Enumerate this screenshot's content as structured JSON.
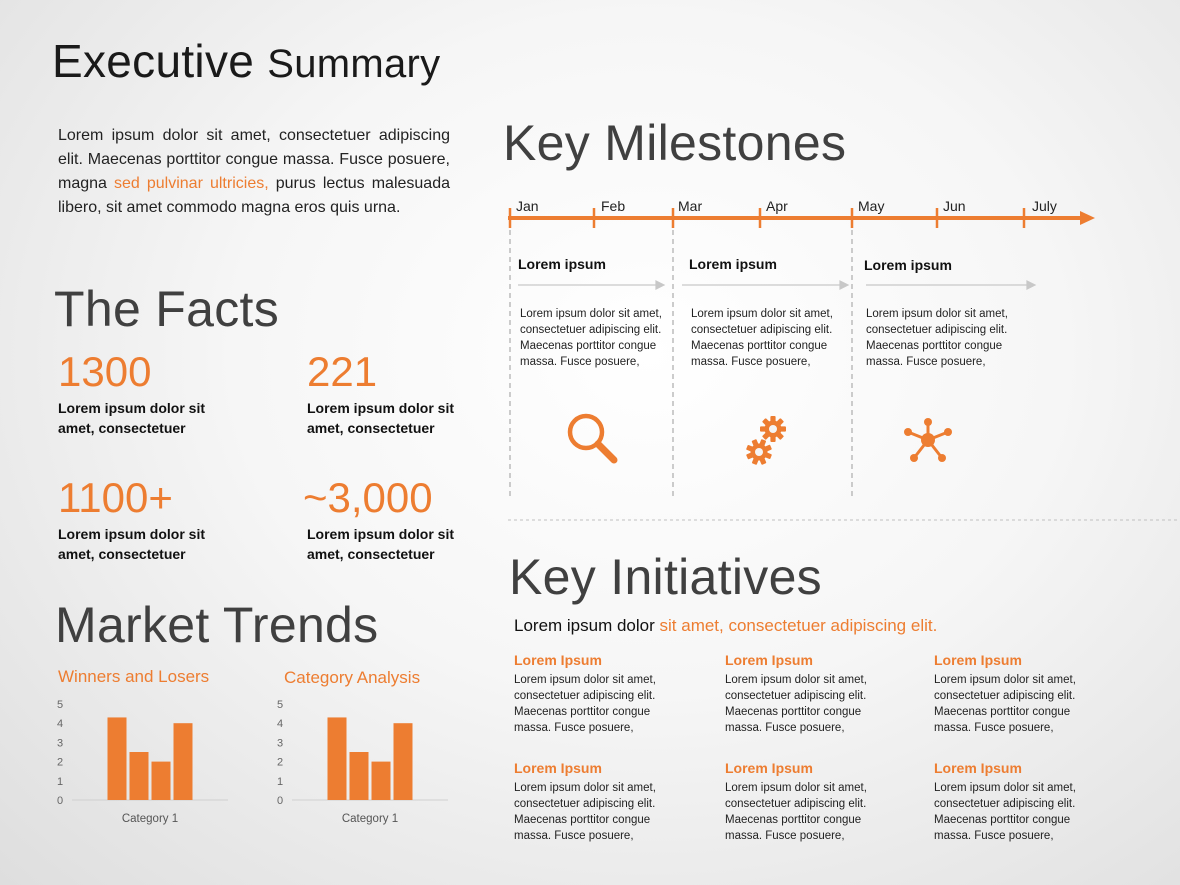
{
  "title": {
    "part1": "Executive",
    "part2": "Summary"
  },
  "intro": {
    "text_before": "Lorem ipsum dolor sit amet, consectetuer adipiscing elit. Maecenas porttitor congue massa. Fusce posuere, magna ",
    "highlight": "sed pulvinar ultricies,",
    "text_after": " purus lectus malesuada libero, sit amet commodo magna eros quis urna."
  },
  "facts": {
    "title": "The Facts",
    "items": [
      {
        "value": "1300",
        "label": "Lorem ipsum dolor sit amet, consectetuer"
      },
      {
        "value": "221",
        "label": "Lorem ipsum dolor sit amet, consectetuer"
      },
      {
        "value": "1100+",
        "label": "Lorem ipsum dolor sit amet, consectetuer"
      },
      {
        "value": "~3,000",
        "label": "Lorem ipsum dolor sit amet, consectetuer"
      }
    ]
  },
  "market_trends": {
    "title": "Market Trends"
  },
  "chart_data": [
    {
      "type": "bar",
      "title": "Winners and Losers",
      "categories": [
        "Category 1"
      ],
      "series": [
        {
          "values": [
            4.3
          ]
        },
        {
          "values": [
            2.5
          ]
        },
        {
          "values": [
            2.0
          ]
        },
        {
          "values": [
            4.0
          ]
        }
      ],
      "ylim": [
        0,
        5
      ],
      "yticks": [
        "0",
        "1",
        "2",
        "3",
        "4",
        "5"
      ],
      "xlabel": "",
      "ylabel": "",
      "color": "#ED7D31",
      "grid": false
    },
    {
      "type": "bar",
      "title": "Category Analysis",
      "categories": [
        "Category 1"
      ],
      "series": [
        {
          "values": [
            4.3
          ]
        },
        {
          "values": [
            2.5
          ]
        },
        {
          "values": [
            2.0
          ]
        },
        {
          "values": [
            4.0
          ]
        }
      ],
      "ylim": [
        0,
        5
      ],
      "yticks": [
        "0",
        "1",
        "2",
        "3",
        "4",
        "5"
      ],
      "xlabel": "",
      "ylabel": "",
      "color": "#ED7D31",
      "grid": false
    }
  ],
  "milestones": {
    "title": "Key Milestones",
    "months": [
      "Jan",
      "Feb",
      "Mar",
      "Apr",
      "May",
      "Jun",
      "July"
    ],
    "items": [
      {
        "heading": "Lorem ipsum",
        "body": "Lorem ipsum dolor sit amet, consectetuer adipiscing elit. Maecenas porttitor congue massa. Fusce posuere,",
        "icon": "magnifier-icon"
      },
      {
        "heading": "Lorem ipsum",
        "body": "Lorem ipsum dolor sit amet, consectetuer adipiscing elit. Maecenas porttitor congue massa. Fusce posuere,",
        "icon": "gears-icon"
      },
      {
        "heading": "Lorem ipsum",
        "body": "Lorem ipsum dolor sit amet, consectetuer adipiscing elit. Maecenas porttitor congue massa. Fusce posuere,",
        "icon": "network-icon"
      }
    ]
  },
  "initiatives": {
    "title": "Key Initiatives",
    "subtitle_plain": "Lorem ipsum dolor ",
    "subtitle_highlight": "sit amet, consectetuer adipiscing elit.",
    "items": [
      {
        "heading": "Lorem Ipsum",
        "body": "Lorem ipsum dolor sit amet, consectetuer adipiscing elit. Maecenas porttitor congue massa. Fusce posuere,"
      },
      {
        "heading": "Lorem Ipsum",
        "body": "Lorem ipsum dolor sit amet, consectetuer adipiscing elit. Maecenas porttitor congue massa. Fusce posuere,"
      },
      {
        "heading": "Lorem Ipsum",
        "body": "Lorem ipsum dolor sit amet, consectetuer adipiscing elit. Maecenas porttitor congue massa. Fusce posuere,"
      },
      {
        "heading": "Lorem Ipsum",
        "body": "Lorem ipsum dolor sit amet, consectetuer adipiscing elit. Maecenas porttitor congue massa. Fusce posuere,"
      },
      {
        "heading": "Lorem Ipsum",
        "body": "Lorem ipsum dolor sit amet, consectetuer adipiscing elit. Maecenas porttitor congue massa. Fusce posuere,"
      },
      {
        "heading": "Lorem Ipsum",
        "body": "Lorem ipsum dolor sit amet, consectetuer adipiscing elit. Maecenas porttitor congue massa. Fusce posuere,"
      }
    ]
  },
  "colors": {
    "accent": "#ED7D31",
    "heading": "#404040"
  }
}
